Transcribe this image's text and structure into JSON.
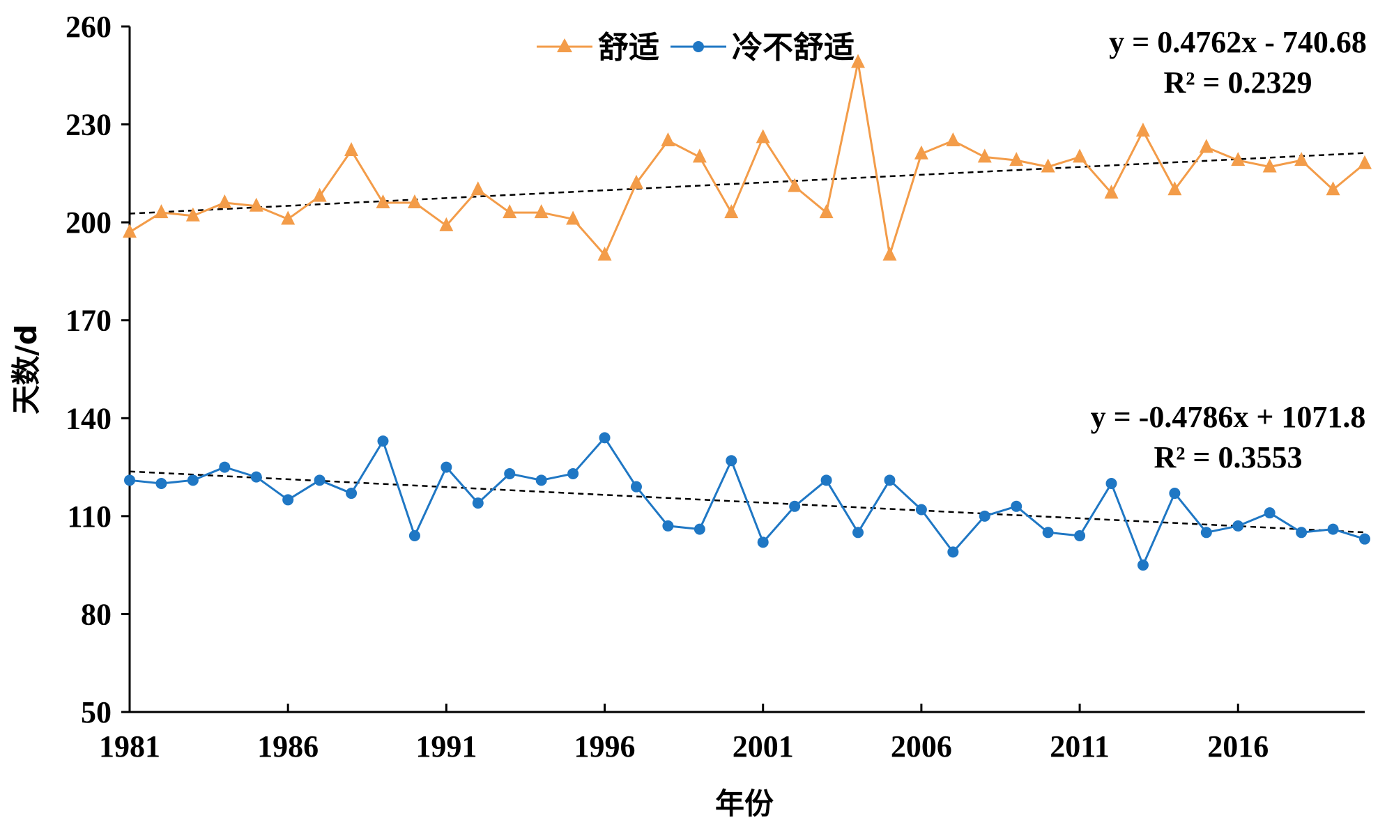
{
  "chart_data": {
    "type": "line",
    "xlabel": "年份",
    "ylabel": "天数/d",
    "ylim": [
      50,
      260
    ],
    "yticks": [
      50,
      80,
      110,
      140,
      170,
      200,
      230,
      260
    ],
    "yticks_labels": [
      "50",
      "80",
      "110",
      "140",
      "170",
      "200",
      "230",
      "260"
    ],
    "xlim": [
      1981,
      2020
    ],
    "xticks": [
      1981,
      1986,
      1991,
      1996,
      2001,
      2006,
      2011,
      2016
    ],
    "xticks_labels": [
      "1981",
      "1986",
      "1991",
      "1996",
      "2001",
      "2006",
      "2011",
      "2016"
    ],
    "x": [
      1981,
      1982,
      1983,
      1984,
      1985,
      1986,
      1987,
      1988,
      1989,
      1990,
      1991,
      1992,
      1993,
      1994,
      1995,
      1996,
      1997,
      1998,
      1999,
      2000,
      2001,
      2002,
      2003,
      2004,
      2005,
      2006,
      2007,
      2008,
      2009,
      2010,
      2011,
      2012,
      2013,
      2014,
      2015,
      2016,
      2017,
      2018,
      2019,
      2020
    ],
    "series": [
      {
        "name": "舒适",
        "color": "#F39C49",
        "marker": "triangle",
        "values": [
          197,
          203,
          202,
          206,
          205,
          201,
          208,
          222,
          206,
          206,
          199,
          210,
          203,
          203,
          201,
          190,
          212,
          225,
          220,
          203,
          226,
          211,
          203,
          249,
          190,
          221,
          225,
          220,
          219,
          217,
          220,
          209,
          228,
          210,
          223,
          219,
          217,
          219,
          210,
          218
        ],
        "trend": {
          "slope": 0.4762,
          "intercept": -740.68,
          "equation": "y = 0.4762x - 740.68",
          "r2": "R² = 0.2329"
        }
      },
      {
        "name": "冷不舒适",
        "color": "#1F77C4",
        "marker": "circle",
        "values": [
          121,
          120,
          121,
          125,
          122,
          115,
          121,
          117,
          133,
          104,
          125,
          114,
          123,
          121,
          123,
          134,
          119,
          107,
          106,
          127,
          102,
          113,
          121,
          105,
          121,
          112,
          99,
          110,
          113,
          105,
          104,
          120,
          95,
          117,
          105,
          107,
          111,
          105,
          106,
          103
        ],
        "trend": {
          "slope": -0.4786,
          "intercept": 1071.8,
          "equation": "y = -0.4786x + 1071.8",
          "r2": "R² = 0.3553"
        }
      }
    ],
    "legend": {
      "position": "top-center",
      "entries": [
        "舒适",
        "冷不舒适"
      ]
    },
    "grid": false
  }
}
